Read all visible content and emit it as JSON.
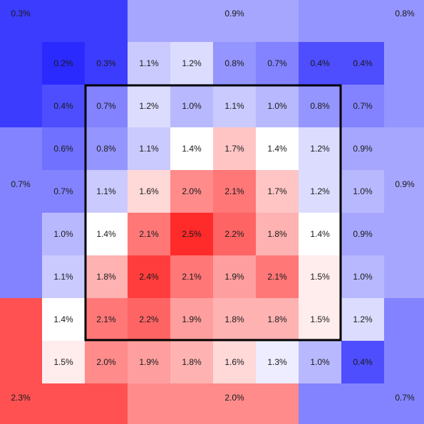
{
  "chart_data": {
    "type": "heatmap",
    "title": "",
    "value_format": "percent",
    "color_scale": {
      "low": "#2a2aff",
      "mid": "#ffffff",
      "high": "#ff2a2a",
      "low_value": 0.2,
      "mid_value": 1.4,
      "high_value": 2.5
    },
    "outer_zones": [
      {
        "name": "top-left",
        "value": 0.3,
        "label": "0.3%"
      },
      {
        "name": "top-center",
        "value": 0.9,
        "label": "0.9%"
      },
      {
        "name": "top-right",
        "value": 0.8,
        "label": "0.8%"
      },
      {
        "name": "middle-left",
        "value": 0.7,
        "label": "0.7%"
      },
      {
        "name": "middle-right",
        "value": 0.9,
        "label": "0.9%"
      },
      {
        "name": "bottom-left",
        "value": 2.3,
        "label": "2.3%"
      },
      {
        "name": "bottom-center",
        "value": 2.0,
        "label": "2.0%"
      },
      {
        "name": "bottom-right",
        "value": 0.7,
        "label": "0.7%"
      }
    ],
    "grid": {
      "rows": 8,
      "cols": 8,
      "values": [
        [
          0.2,
          0.3,
          1.1,
          1.2,
          0.8,
          0.7,
          0.4,
          0.4
        ],
        [
          0.4,
          0.7,
          1.2,
          1.0,
          1.1,
          1.0,
          0.8,
          0.7
        ],
        [
          0.6,
          0.8,
          1.1,
          1.4,
          1.7,
          1.4,
          1.2,
          0.9
        ],
        [
          0.7,
          1.1,
          1.6,
          2.0,
          2.1,
          1.7,
          1.2,
          1.0
        ],
        [
          1.0,
          1.4,
          2.1,
          2.5,
          2.2,
          1.8,
          1.4,
          0.9
        ],
        [
          1.1,
          1.8,
          2.4,
          2.1,
          1.9,
          2.1,
          1.5,
          1.0
        ],
        [
          1.4,
          2.1,
          2.2,
          1.9,
          1.8,
          1.8,
          1.5,
          1.2
        ],
        [
          1.5,
          2.0,
          1.9,
          1.8,
          1.6,
          1.3,
          1.0,
          0.4
        ]
      ],
      "labels": [
        [
          "0.2%",
          "0.3%",
          "1.1%",
          "1.2%",
          "0.8%",
          "0.7%",
          "0.4%",
          "0.4%"
        ],
        [
          "0.4%",
          "0.7%",
          "1.2%",
          "1.0%",
          "1.1%",
          "1.0%",
          "0.8%",
          "0.7%"
        ],
        [
          "0.6%",
          "0.8%",
          "1.1%",
          "1.4%",
          "1.7%",
          "1.4%",
          "1.2%",
          "0.9%"
        ],
        [
          "0.7%",
          "1.1%",
          "1.6%",
          "2.0%",
          "2.1%",
          "1.7%",
          "1.2%",
          "1.0%"
        ],
        [
          "1.0%",
          "1.4%",
          "2.1%",
          "2.5%",
          "2.2%",
          "1.8%",
          "1.4%",
          "0.9%"
        ],
        [
          "1.1%",
          "1.8%",
          "2.4%",
          "2.1%",
          "1.9%",
          "2.1%",
          "1.5%",
          "1.0%"
        ],
        [
          "1.4%",
          "2.1%",
          "2.2%",
          "1.9%",
          "1.8%",
          "1.8%",
          "1.5%",
          "1.2%"
        ],
        [
          "1.5%",
          "2.0%",
          "1.9%",
          "1.8%",
          "1.6%",
          "1.3%",
          "1.0%",
          "0.4%"
        ]
      ]
    },
    "highlight_box": {
      "row_start": 1,
      "row_end": 6,
      "col_start": 1,
      "col_end": 6
    }
  }
}
